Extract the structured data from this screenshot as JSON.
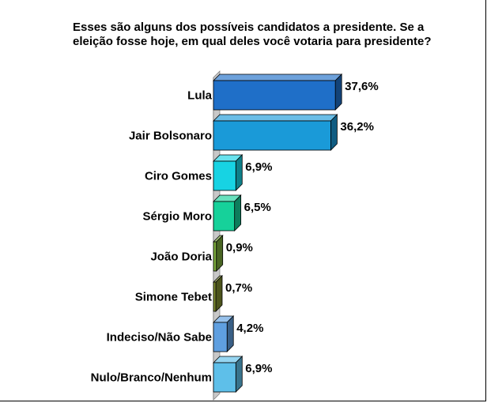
{
  "chart_data": {
    "type": "bar",
    "orientation": "horizontal",
    "style": "3d",
    "title": "Esses são alguns dos possíveis candidatos a presidente. Se a eleição fosse hoje, em qual deles você votaria para presidente?",
    "categories": [
      "Lula",
      "Jair Bolsonaro",
      "Ciro Gomes",
      "Sérgio Moro",
      "João Doria",
      "Simone Tebet",
      "Indeciso/Não Sabe",
      "Nulo/Branco/Nenhum"
    ],
    "values": [
      37.6,
      36.2,
      6.9,
      6.5,
      0.9,
      0.7,
      4.2,
      6.9
    ],
    "value_labels": [
      "37,6%",
      "36,2%",
      "6,9%",
      "6,5%",
      "0,9%",
      "0,7%",
      "4,2%",
      "6,9%"
    ],
    "colors": [
      "#1f6fc8",
      "#1a9ad8",
      "#17d3e3",
      "#16d19a",
      "#79a83a",
      "#7e8c2f",
      "#5f9fe0",
      "#5ebfe9"
    ],
    "xlim": [
      0,
      40
    ],
    "grid": false,
    "legend": false
  }
}
